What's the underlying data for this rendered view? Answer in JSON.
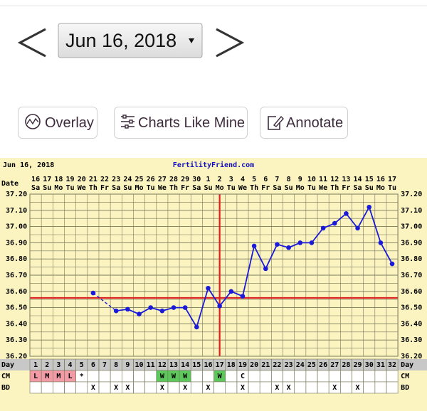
{
  "date": "Jun 16, 2018",
  "buttons": [
    "Overlay",
    "Charts Like Mine",
    "Annotate"
  ],
  "chart_data": {
    "type": "line",
    "title": "FertilityFriend.com",
    "row_labels": {
      "date": "Date",
      "day": "Day",
      "cm": "CM",
      "bd": "BD"
    },
    "dates": [
      16,
      17,
      18,
      19,
      20,
      21,
      22,
      23,
      24,
      25,
      26,
      27,
      28,
      29,
      30,
      1,
      2,
      3,
      4,
      5,
      6,
      7,
      8,
      9,
      10,
      11,
      12,
      13,
      14,
      15,
      16,
      17
    ],
    "weekdays": [
      "Sa",
      "Su",
      "Mo",
      "Tu",
      "We",
      "Th",
      "Fr",
      "Sa",
      "Su",
      "Mo",
      "Tu",
      "We",
      "Th",
      "Fr",
      "Sa",
      "Su",
      "Mo",
      "Tu",
      "We",
      "Th",
      "Fr",
      "Sa",
      "Su",
      "Mo",
      "Tu",
      "We",
      "Th",
      "Fr",
      "Sa",
      "Su",
      "Mo",
      "Tu"
    ],
    "categories": [
      1,
      2,
      3,
      4,
      5,
      6,
      7,
      8,
      9,
      10,
      11,
      12,
      13,
      14,
      15,
      16,
      17,
      18,
      19,
      20,
      21,
      22,
      23,
      24,
      25,
      26,
      27,
      28,
      29,
      30,
      31,
      32
    ],
    "values": [
      null,
      null,
      null,
      null,
      null,
      36.59,
      null,
      36.48,
      36.49,
      36.46,
      36.5,
      36.48,
      36.5,
      36.5,
      36.38,
      36.62,
      36.51,
      36.6,
      36.57,
      36.88,
      36.74,
      36.89,
      36.87,
      36.9,
      36.9,
      36.99,
      37.02,
      37.08,
      36.99,
      37.12,
      36.9,
      36.77
    ],
    "color": "#1a1ad8",
    "ylim": [
      36.2,
      37.2
    ],
    "yticks": [
      {
        "value": 36.2,
        "label": "36.20"
      },
      {
        "value": 36.3,
        "label": "36.30"
      },
      {
        "value": 36.4,
        "label": "36.40"
      },
      {
        "value": 36.5,
        "label": "36.50"
      },
      {
        "value": 36.6,
        "label": "36.60"
      },
      {
        "value": 36.7,
        "label": "36.70"
      },
      {
        "value": 36.8,
        "label": "36.80"
      },
      {
        "value": 36.9,
        "label": "36.90"
      },
      {
        "value": 37.0,
        "label": "37.00"
      },
      {
        "value": 37.1,
        "label": "37.10"
      },
      {
        "value": 37.2,
        "label": "37.20"
      }
    ],
    "grid": true,
    "coverline": 36.56,
    "ovulation_day": 17,
    "marker_color": "#e02020",
    "cm": [
      "L",
      "M",
      "M",
      "L",
      "*",
      null,
      null,
      null,
      null,
      null,
      null,
      "W",
      "W",
      "W",
      null,
      null,
      "W",
      null,
      "C",
      null,
      null,
      null,
      null,
      null,
      null,
      null,
      null,
      null,
      null,
      null,
      null,
      null
    ],
    "cm_colors": {
      "L": "#f29aa6",
      "M": "#f29aa6",
      "W": "#5cc85c"
    },
    "bd": [
      null,
      null,
      null,
      null,
      null,
      "X",
      null,
      "X",
      "X",
      null,
      null,
      "X",
      null,
      "X",
      null,
      "X",
      null,
      null,
      "X",
      null,
      null,
      "X",
      "X",
      null,
      null,
      null,
      "X",
      null,
      "X",
      null,
      null,
      null
    ]
  }
}
